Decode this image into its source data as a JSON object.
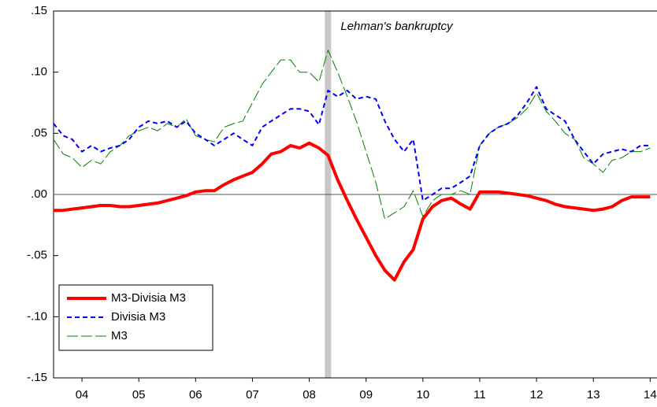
{
  "chart_data": {
    "type": "line",
    "x": [
      2004,
      2004.17,
      2004.33,
      2004.5,
      2004.67,
      2004.83,
      2005,
      2005.17,
      2005.33,
      2005.5,
      2005.67,
      2005.83,
      2006,
      2006.17,
      2006.33,
      2006.5,
      2006.67,
      2006.83,
      2007,
      2007.17,
      2007.33,
      2007.5,
      2007.67,
      2007.83,
      2008,
      2008.17,
      2008.33,
      2008.5,
      2008.67,
      2008.83,
      2009,
      2009.17,
      2009.33,
      2009.5,
      2009.67,
      2009.83,
      2010,
      2010.17,
      2010.33,
      2010.5,
      2010.67,
      2010.83,
      2011,
      2011.17,
      2011.33,
      2011.5,
      2011.67,
      2011.83,
      2012,
      2012.17,
      2012.33,
      2012.5,
      2012.67,
      2012.83,
      2013,
      2013.17,
      2013.33,
      2013.5,
      2013.67,
      2013.83,
      2014,
      2014.17,
      2014.33,
      2014.5
    ],
    "series": [
      {
        "name": "M3-Divisia M3",
        "color": "#ff0000",
        "width": 4,
        "dash": "none",
        "values": [
          -0.013,
          -0.013,
          -0.012,
          -0.011,
          -0.01,
          -0.009,
          -0.009,
          -0.01,
          -0.01,
          -0.009,
          -0.008,
          -0.007,
          -0.005,
          -0.003,
          -0.001,
          0.002,
          0.003,
          0.003,
          0.008,
          0.012,
          0.015,
          0.018,
          0.025,
          0.033,
          0.035,
          0.04,
          0.038,
          0.042,
          0.038,
          0.032,
          0.012,
          -0.005,
          -0.02,
          -0.035,
          -0.05,
          -0.062,
          -0.07,
          -0.055,
          -0.045,
          -0.02,
          -0.01,
          -0.005,
          -0.003,
          -0.008,
          -0.012,
          0.002,
          0.002,
          0.002,
          0.001,
          0,
          -0.001,
          -0.003,
          -0.005,
          -0.008,
          -0.01,
          -0.011,
          -0.012,
          -0.013,
          -0.012,
          -0.01,
          -0.005,
          -0.002,
          -0.002,
          -0.002
        ]
      },
      {
        "name": "Divisia M3",
        "color": "#0000ff",
        "width": 2,
        "dash": "6 4",
        "values": [
          0.058,
          0.048,
          0.045,
          0.035,
          0.04,
          0.035,
          0.038,
          0.04,
          0.045,
          0.055,
          0.06,
          0.058,
          0.06,
          0.055,
          0.06,
          0.05,
          0.045,
          0.04,
          0.045,
          0.05,
          0.045,
          0.04,
          0.055,
          0.06,
          0.065,
          0.07,
          0.07,
          0.068,
          0.057,
          0.085,
          0.08,
          0.085,
          0.078,
          0.08,
          0.078,
          0.06,
          0.045,
          0.035,
          0.045,
          -0.005,
          0,
          0.005,
          0.005,
          0.01,
          0.015,
          0.04,
          0.05,
          0.055,
          0.058,
          0.065,
          0.075,
          0.088,
          0.07,
          0.065,
          0.06,
          0.045,
          0.035,
          0.025,
          0.033,
          0.035,
          0.037,
          0.035,
          0.04,
          0.04
        ]
      },
      {
        "name": "M3",
        "color": "#008000",
        "width": 1,
        "dash": "14 4",
        "values": [
          0.045,
          0.033,
          0.03,
          0.022,
          0.028,
          0.025,
          0.035,
          0.04,
          0.048,
          0.052,
          0.055,
          0.052,
          0.058,
          0.055,
          0.062,
          0.048,
          0.045,
          0.043,
          0.055,
          0.058,
          0.06,
          0.075,
          0.09,
          0.1,
          0.11,
          0.11,
          0.1,
          0.1,
          0.092,
          0.118,
          0.1,
          0.08,
          0.06,
          0.035,
          0.01,
          -0.02,
          -0.015,
          -0.01,
          0.003,
          -0.018,
          -0.005,
          0,
          0,
          0.003,
          0,
          0.04,
          0.05,
          0.055,
          0.058,
          0.063,
          0.07,
          0.083,
          0.068,
          0.06,
          0.05,
          0.045,
          0.03,
          0.025,
          0.018,
          0.028,
          0.03,
          0.035,
          0.035,
          0.038
        ]
      }
    ],
    "xlim": [
      2004,
      2014.62
    ],
    "xticks": [
      {
        "value": 2004.5,
        "label": "04"
      },
      {
        "value": 2005.5,
        "label": "05"
      },
      {
        "value": 2006.5,
        "label": "06"
      },
      {
        "value": 2007.5,
        "label": "07"
      },
      {
        "value": 2008.5,
        "label": "08"
      },
      {
        "value": 2009.5,
        "label": "09"
      },
      {
        "value": 2010.5,
        "label": "10"
      },
      {
        "value": 2011.5,
        "label": "11"
      },
      {
        "value": 2012.5,
        "label": "12"
      },
      {
        "value": 2013.5,
        "label": "13"
      },
      {
        "value": 2014.5,
        "label": "14"
      }
    ],
    "ylim": [
      -0.15,
      0.15
    ],
    "yticks": [
      {
        "value": -0.15,
        "label": "-.15"
      },
      {
        "value": -0.1,
        "label": "-.10"
      },
      {
        "value": -0.05,
        "label": "-.05"
      },
      {
        "value": 0,
        "label": ".00"
      },
      {
        "value": 0.05,
        "label": ".05"
      },
      {
        "value": 0.1,
        "label": ".10"
      },
      {
        "value": 0.15,
        "label": ".15"
      }
    ],
    "annotations": [
      {
        "text": "Lehman's bankruptcy",
        "x": 2008.83
      }
    ],
    "legend": "lower left"
  }
}
